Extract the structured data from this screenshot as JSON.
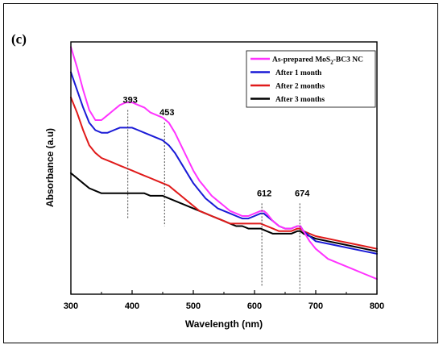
{
  "chart_data": {
    "type": "line",
    "panel_label": "(c)",
    "xlabel": "Wavelength (nm)",
    "ylabel": "Absorbance (a.u)",
    "xlim": [
      300,
      800
    ],
    "ylim": [
      0,
      1
    ],
    "xticks": [
      300,
      400,
      500,
      600,
      700,
      800
    ],
    "grid": false,
    "legend_position": "top-right",
    "legend_subscript_part": [
      "As-prepared MoS",
      "2",
      "-BC3 NC"
    ],
    "series": [
      {
        "name": "As-prepared MoS2-BC3 NC",
        "color": "#ff33ff",
        "x": [
          300,
          310,
          320,
          330,
          340,
          350,
          360,
          370,
          380,
          390,
          400,
          410,
          420,
          430,
          440,
          450,
          460,
          470,
          480,
          490,
          500,
          510,
          520,
          530,
          540,
          550,
          560,
          570,
          580,
          590,
          600,
          610,
          615,
          620,
          630,
          640,
          650,
          660,
          670,
          675,
          680,
          690,
          700,
          720,
          740,
          760,
          780,
          800
        ],
        "values": [
          0.98,
          0.9,
          0.81,
          0.73,
          0.69,
          0.69,
          0.71,
          0.73,
          0.75,
          0.76,
          0.76,
          0.75,
          0.74,
          0.72,
          0.71,
          0.7,
          0.68,
          0.64,
          0.59,
          0.54,
          0.49,
          0.45,
          0.42,
          0.39,
          0.37,
          0.35,
          0.33,
          0.32,
          0.31,
          0.31,
          0.32,
          0.33,
          0.33,
          0.32,
          0.29,
          0.27,
          0.26,
          0.26,
          0.27,
          0.27,
          0.25,
          0.21,
          0.18,
          0.14,
          0.12,
          0.1,
          0.08,
          0.06
        ]
      },
      {
        "name": "After 1 month",
        "color": "#1a1ad6",
        "x": [
          300,
          310,
          320,
          330,
          340,
          350,
          360,
          370,
          380,
          390,
          400,
          410,
          420,
          430,
          440,
          450,
          460,
          470,
          480,
          490,
          500,
          510,
          520,
          530,
          540,
          550,
          560,
          570,
          580,
          590,
          600,
          610,
          615,
          620,
          630,
          640,
          650,
          660,
          670,
          675,
          680,
          690,
          700,
          720,
          740,
          760,
          780,
          800
        ],
        "values": [
          0.88,
          0.81,
          0.74,
          0.68,
          0.65,
          0.64,
          0.64,
          0.65,
          0.66,
          0.66,
          0.66,
          0.65,
          0.64,
          0.63,
          0.62,
          0.61,
          0.59,
          0.56,
          0.52,
          0.48,
          0.44,
          0.41,
          0.38,
          0.36,
          0.34,
          0.33,
          0.32,
          0.31,
          0.3,
          0.3,
          0.31,
          0.32,
          0.32,
          0.31,
          0.29,
          0.27,
          0.26,
          0.26,
          0.27,
          0.27,
          0.25,
          0.23,
          0.21,
          0.2,
          0.19,
          0.18,
          0.17,
          0.16
        ]
      },
      {
        "name": "After 2 months",
        "color": "#e01a1a",
        "x": [
          300,
          310,
          320,
          330,
          340,
          350,
          360,
          370,
          380,
          390,
          400,
          410,
          420,
          430,
          440,
          450,
          460,
          470,
          480,
          490,
          500,
          510,
          520,
          530,
          540,
          550,
          560,
          570,
          580,
          590,
          600,
          610,
          620,
          630,
          640,
          650,
          660,
          670,
          675,
          680,
          690,
          700,
          720,
          740,
          760,
          780,
          800
        ],
        "values": [
          0.78,
          0.72,
          0.65,
          0.59,
          0.56,
          0.54,
          0.53,
          0.52,
          0.51,
          0.5,
          0.49,
          0.48,
          0.47,
          0.46,
          0.45,
          0.44,
          0.43,
          0.41,
          0.39,
          0.37,
          0.35,
          0.33,
          0.32,
          0.31,
          0.3,
          0.29,
          0.28,
          0.28,
          0.28,
          0.28,
          0.28,
          0.28,
          0.27,
          0.26,
          0.25,
          0.25,
          0.25,
          0.26,
          0.26,
          0.25,
          0.24,
          0.23,
          0.22,
          0.21,
          0.2,
          0.19,
          0.18
        ]
      },
      {
        "name": "After 3 months",
        "color": "#000000",
        "x": [
          300,
          310,
          320,
          330,
          340,
          350,
          360,
          370,
          380,
          390,
          400,
          410,
          420,
          430,
          440,
          450,
          460,
          470,
          480,
          490,
          500,
          510,
          520,
          530,
          540,
          550,
          560,
          570,
          580,
          590,
          600,
          610,
          620,
          630,
          640,
          650,
          660,
          670,
          675,
          680,
          690,
          700,
          720,
          740,
          760,
          780,
          800
        ],
        "values": [
          0.48,
          0.46,
          0.44,
          0.42,
          0.41,
          0.4,
          0.4,
          0.4,
          0.4,
          0.4,
          0.4,
          0.4,
          0.4,
          0.39,
          0.39,
          0.39,
          0.38,
          0.37,
          0.36,
          0.35,
          0.34,
          0.33,
          0.32,
          0.31,
          0.3,
          0.29,
          0.28,
          0.27,
          0.27,
          0.26,
          0.26,
          0.26,
          0.25,
          0.24,
          0.24,
          0.24,
          0.24,
          0.25,
          0.25,
          0.24,
          0.23,
          0.22,
          0.21,
          0.2,
          0.19,
          0.18,
          0.17
        ]
      }
    ],
    "annotations": [
      {
        "label": "393",
        "x": 393,
        "y_top": 0.73,
        "y_bottom": 0.3
      },
      {
        "label": "453",
        "x": 453,
        "y_top": 0.68,
        "y_bottom": 0.27
      },
      {
        "label": "612",
        "x": 612,
        "y_top": 0.36,
        "y_bottom": 0.03
      },
      {
        "label": "674",
        "x": 674,
        "y_top": 0.36,
        "y_bottom": 0.0
      }
    ]
  }
}
